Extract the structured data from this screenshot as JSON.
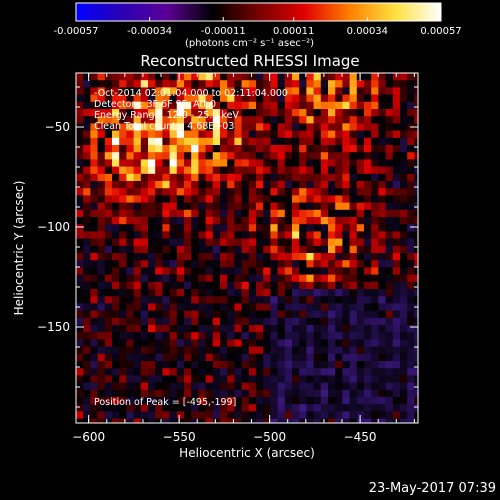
{
  "title": "Reconstructed RHESSI Image",
  "colorbar": {
    "ticks": [
      "-0.00057",
      "-0.00034",
      "-0.00011",
      "0.00011",
      "0.00034",
      "0.00057"
    ],
    "units": "(photons cm⁻² s⁻¹ asec⁻²)",
    "range": [
      -0.00057,
      0.00057
    ],
    "colors": [
      "#0000ff",
      "#2a00b4",
      "#5a0096",
      "#000000",
      "#780000",
      "#e00000",
      "#ff8000",
      "#ffe040",
      "#ffffff"
    ]
  },
  "annotations": {
    "time_range": "-Oct-2014 02:01:04.000 to 02:11:04.000",
    "detectors": "Detectors: 3F 6F 9F, Att 0",
    "energy": "Energy Range: 12.0 - 25.0 keV",
    "clean": "Clean    Total counts: 4.68E+03",
    "peak": "Position of Peak = [-495,-199]"
  },
  "timestamp": "23-May-2017 07:39",
  "chart_data": {
    "type": "heatmap",
    "title": "Reconstructed RHESSI Image",
    "xlabel": "Heliocentric X (arcsec)",
    "ylabel": "Heliocentric Y (arcsec)",
    "xlim": [
      -607,
      -418
    ],
    "ylim": [
      -198,
      -23
    ],
    "xticks": [
      -600,
      -550,
      -500,
      -450
    ],
    "yticks": [
      -50,
      -100,
      -150
    ],
    "value_range": [
      -0.00057,
      0.00057
    ],
    "peak_position": [
      -495,
      -199
    ],
    "bright_sources": [
      {
        "x": -540,
        "y": -48,
        "level": 0.95
      },
      {
        "x": -575,
        "y": -62,
        "level": 0.8
      },
      {
        "x": -465,
        "y": -30,
        "level": 0.75
      },
      {
        "x": -475,
        "y": -105,
        "level": 0.6
      }
    ]
  }
}
